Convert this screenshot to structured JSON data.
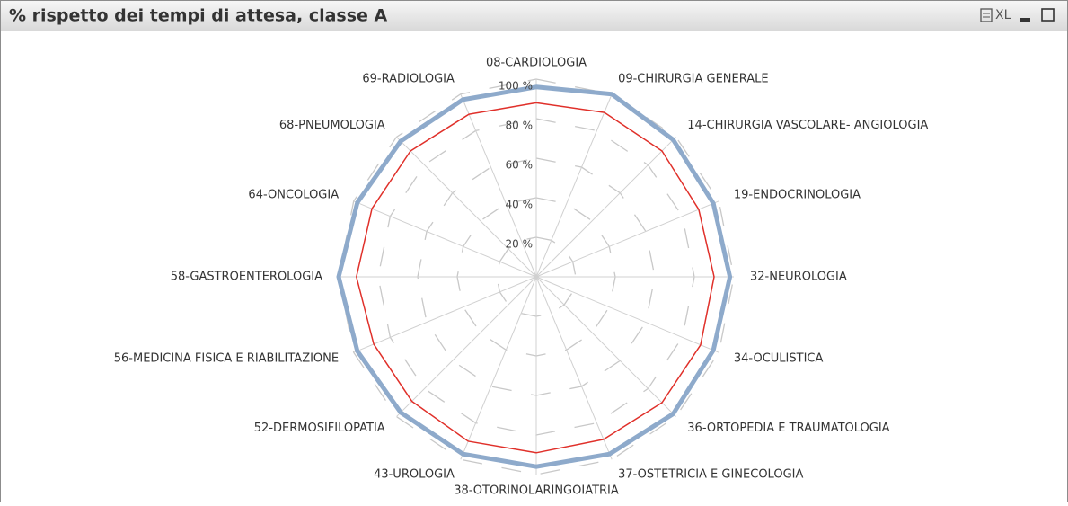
{
  "window": {
    "xl_button": "XL"
  },
  "chart_data": {
    "type": "radar",
    "title": "% rispetto dei tempi di attesa, classe A",
    "categories": [
      "08-CARDIOLOGIA",
      "09-CHIRURGIA GENERALE",
      "14-CHIRURGIA VASCOLARE- ANGIOLOGIA",
      "19-ENDOCRINOLOGIA",
      "32-NEUROLOGIA",
      "34-OCULISTICA",
      "36-ORTOPEDIA E TRAUMATOLOGIA",
      "37-OSTETRICIA E GINECOLOGIA",
      "38-OTORINOLARINGOIATRIA",
      "43-UROLOGIA",
      "52-DERMOSIFILOPATIA",
      "56-MEDICINA FISICA E RIABILITAZIONE",
      "58-GASTROENTEROLOGIA",
      "64-ONCOLOGIA",
      "68-PNEUMOLOGIA",
      "69-RADIOLOGIA"
    ],
    "series": [
      {
        "color": "#8eaacb",
        "values": [
          96,
          100,
          98,
          97,
          98,
          97,
          98,
          97,
          96,
          97,
          97,
          98,
          100,
          98,
          97,
          97
        ]
      },
      {
        "color": "#e0302a",
        "values": [
          88,
          90,
          90,
          89,
          90,
          90,
          90,
          89,
          89,
          90,
          89,
          89,
          91,
          90,
          90,
          89
        ]
      }
    ],
    "ylim": [
      0,
      100
    ],
    "yticks": [
      {
        "value": 20,
        "label": "20 %"
      },
      {
        "value": 40,
        "label": "40 %"
      },
      {
        "value": 60,
        "label": "60 %"
      },
      {
        "value": 80,
        "label": "80 %"
      },
      {
        "value": 100,
        "label": "100 %"
      }
    ],
    "grid": true
  }
}
